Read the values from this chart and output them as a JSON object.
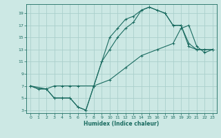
{
  "xlabel": "Humidex (Indice chaleur)",
  "ylabel": "",
  "bg_color": "#cce8e4",
  "line_color": "#1a6b60",
  "grid_color": "#aacfcc",
  "xlim": [
    -0.5,
    23.5
  ],
  "ylim": [
    2.5,
    20.5
  ],
  "xticks": [
    0,
    1,
    2,
    3,
    4,
    5,
    6,
    7,
    8,
    9,
    10,
    11,
    12,
    13,
    14,
    15,
    16,
    17,
    18,
    19,
    20,
    21,
    22,
    23
  ],
  "yticks": [
    3,
    5,
    7,
    9,
    11,
    13,
    15,
    17,
    19
  ],
  "line1_x": [
    0,
    1,
    2,
    3,
    4,
    5,
    6,
    7,
    8,
    9,
    10,
    11,
    12,
    13,
    14,
    15,
    16,
    17,
    18,
    19,
    20,
    21,
    22,
    23
  ],
  "line1_y": [
    7,
    6.5,
    6.5,
    5,
    5,
    5,
    3.5,
    3,
    7,
    11,
    15,
    16.5,
    18,
    18.5,
    19.5,
    20,
    19.5,
    19,
    17,
    17,
    13.5,
    13,
    13,
    13
  ],
  "line2_x": [
    0,
    1,
    2,
    3,
    4,
    5,
    6,
    7,
    8,
    9,
    10,
    11,
    12,
    13,
    14,
    15,
    16,
    17,
    18,
    19,
    20,
    21,
    22,
    23
  ],
  "line2_y": [
    7,
    6.5,
    6.5,
    5,
    5,
    5,
    3.5,
    3,
    7,
    11,
    13,
    15,
    16.5,
    17.5,
    19.5,
    20,
    19.5,
    19,
    17,
    17,
    14,
    13,
    13,
    13
  ],
  "line3_x": [
    0,
    2,
    3,
    4,
    5,
    6,
    8,
    10,
    12,
    14,
    16,
    18,
    19,
    20,
    21,
    22,
    23
  ],
  "line3_y": [
    7,
    6.5,
    7,
    7,
    7,
    7,
    7,
    8,
    10,
    12,
    13,
    14,
    16.5,
    17,
    13.5,
    12.5,
    13
  ]
}
